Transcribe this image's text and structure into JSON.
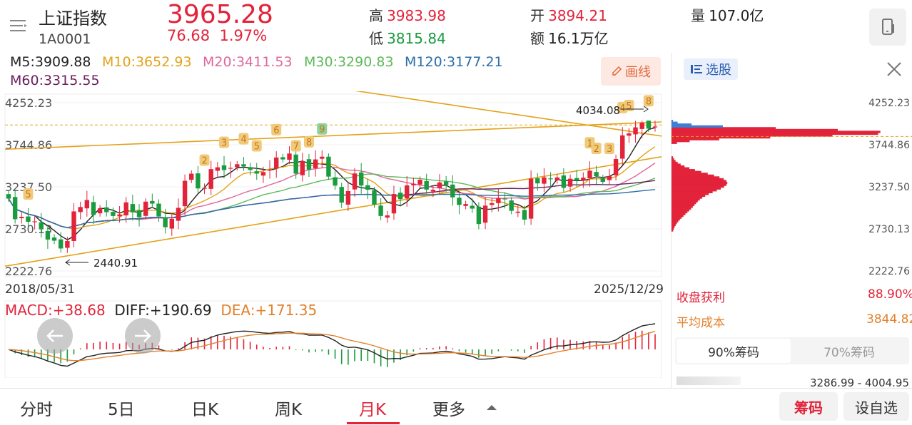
{
  "header": {
    "name": "上证指数",
    "code": "1A0001",
    "price": "3965.28",
    "change": "76.68",
    "change_pct": "1.97%",
    "high_label": "高",
    "high_value": "3983.98",
    "low_label": "低",
    "low_value": "3815.84",
    "open_label": "开",
    "open_value": "3894.21",
    "amount_label": "额",
    "amount_value": "16.1万亿",
    "volume_label": "量",
    "volume_value": "107.0亿",
    "icon_menu": "menu-lines-icon",
    "icon_device": "phone-switch-icon"
  },
  "ma": {
    "m5": "M5:3909.88",
    "m10": "M10:3652.93",
    "m20": "M20:3411.53",
    "m30": "M30:3290.83",
    "m120": "M120:3177.21",
    "m60": "M60:3315.55",
    "colors": {
      "m5": "#222222",
      "m10": "#e3a21a",
      "m20": "#e0679c",
      "m30": "#5fb95a",
      "m120": "#2b6ea8",
      "m60": "#6b1f5e"
    }
  },
  "draw_button": "画线",
  "y_axis": [
    "4252.23",
    "3744.86",
    "3237.50",
    "2730.13",
    "2222.76"
  ],
  "annotations": {
    "high_mark": "4034.08",
    "low_mark": "2440.91"
  },
  "dates": {
    "start": "2018/05/31",
    "end": "2025/12/29"
  },
  "macd": {
    "macd": "MACD:+38.68",
    "diff": "DIFF:+190.69",
    "dea": "DEA:+171.35"
  },
  "right_panel": {
    "select_stock": "选股",
    "profit_label": "收盘获利",
    "profit_value": "88.90%",
    "avg_cost_label": "平均成本",
    "avg_cost_value": "3844.82",
    "tab_90": "90%筹码",
    "tab_70": "70%筹码",
    "range": "3286.99 - 4004.95"
  },
  "bottom_tabs": [
    "分时",
    "5日",
    "日K",
    "周K",
    "月K",
    "更多"
  ],
  "active_tab": "月K",
  "bottom_buttons": {
    "chips": "筹码",
    "add_fav": "设自选"
  },
  "chart_data": {
    "type": "candlestick",
    "period": "monthly",
    "y_range": [
      2222.76,
      4252.23
    ],
    "y_ticks": [
      4252.23,
      3744.86,
      3237.5,
      2730.13,
      2222.76
    ],
    "closes": [
      3095,
      2847,
      2876,
      2816,
      2821,
      2725,
      2602,
      2588,
      2494,
      2584,
      2941,
      2994,
      3078,
      2898,
      2978,
      2932,
      2886,
      2905,
      3050,
      2930,
      2871,
      3059,
      3035,
      2880,
      2750,
      2852,
      2984,
      3310,
      3396,
      3218,
      3225,
      3451,
      3473,
      3440,
      3466,
      3510,
      3483,
      3441,
      3397,
      3416,
      3446,
      3591,
      3568,
      3639,
      3397,
      3547,
      3445,
      3568,
      3601,
      3361,
      3252,
      3047,
      3186,
      3399,
      3253,
      3202,
      3024,
      2886,
      2893,
      3151,
      3089,
      3255,
      3273,
      3323,
      3204,
      3202,
      3291,
      3261,
      3110,
      3019,
      3030,
      2975,
      2789,
      3011,
      3041,
      3104,
      3089,
      2948,
      2938,
      2842,
      3336,
      3279,
      3351,
      3336,
      3351,
      3225,
      3335,
      3312,
      3348,
      3433,
      3366,
      3298,
      3365,
      3573,
      3858,
      3882,
      3955,
      4012,
      3939,
      3965
    ],
    "highs_max": 4034.08,
    "lows_min": 2440.91
  }
}
